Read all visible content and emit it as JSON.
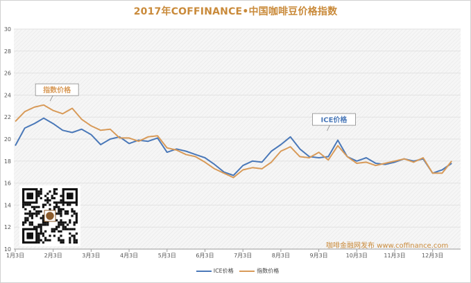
{
  "chart_data": {
    "type": "line",
    "title": "2017年COFFINANCE•中国咖啡豆价格指数",
    "xlabel": "",
    "ylabel": "",
    "ylim": [
      10,
      30
    ],
    "yticks": [
      10,
      12,
      14,
      16,
      18,
      20,
      22,
      24,
      26,
      28,
      30
    ],
    "xticks": [
      "1月3日",
      "2月3日",
      "3月3日",
      "4月3日",
      "5月3日",
      "6月3日",
      "7月3日",
      "8月3日",
      "9月3日",
      "10月3日",
      "11月3日",
      "12月3日"
    ],
    "grid": true,
    "legend_position": "bottom",
    "x_index": [
      0,
      0.25,
      0.5,
      0.75,
      1,
      1.25,
      1.5,
      1.75,
      2,
      2.25,
      2.5,
      2.75,
      3,
      3.25,
      3.5,
      3.75,
      4,
      4.25,
      4.5,
      4.75,
      5,
      5.25,
      5.5,
      5.75,
      6,
      6.25,
      6.5,
      6.75,
      7,
      7.25,
      7.5,
      7.75,
      8,
      8.25,
      8.5,
      8.75,
      9,
      9.25,
      9.5,
      9.75,
      10,
      10.25,
      10.5,
      10.75,
      11,
      11.25,
      11.5
    ],
    "series": [
      {
        "name": "ICE价格",
        "color": "#4a78b8",
        "values": [
          19.4,
          21.0,
          21.4,
          21.9,
          21.4,
          20.8,
          20.6,
          20.9,
          20.4,
          19.5,
          20.0,
          20.2,
          19.6,
          19.9,
          19.8,
          20.1,
          18.8,
          19.1,
          18.9,
          18.6,
          18.3,
          17.7,
          17.0,
          16.7,
          17.6,
          18.0,
          17.9,
          18.9,
          19.5,
          20.2,
          19.1,
          18.4,
          18.3,
          18.4,
          19.9,
          18.4,
          18.0,
          18.3,
          17.8,
          17.7,
          17.9,
          18.2,
          18.0,
          18.2,
          16.9,
          17.2,
          17.8
        ]
      },
      {
        "name": "指数价格",
        "color": "#d89a58",
        "values": [
          21.6,
          22.5,
          22.9,
          23.1,
          22.6,
          22.3,
          22.8,
          21.8,
          21.2,
          20.8,
          20.9,
          20.1,
          20.1,
          19.8,
          20.2,
          20.3,
          19.2,
          19.0,
          18.6,
          18.4,
          17.9,
          17.3,
          16.9,
          16.5,
          17.2,
          17.4,
          17.3,
          17.9,
          18.9,
          19.3,
          18.4,
          18.3,
          18.8,
          18.1,
          19.4,
          18.4,
          17.8,
          17.9,
          17.6,
          17.8,
          18.0,
          18.2,
          17.9,
          18.3,
          16.9,
          16.9,
          18.0
        ]
      }
    ],
    "annotations": [
      {
        "text": "指数价格",
        "series": "指数价格",
        "at_x": 1.1
      },
      {
        "text": "ICE价格",
        "series": "ICE价格",
        "at_x": 8.4
      }
    ]
  },
  "watermark": {
    "text": "咖啡金融网发布   www.coffinance.com"
  },
  "qr_code": {
    "icon": "qr-code-icon"
  }
}
